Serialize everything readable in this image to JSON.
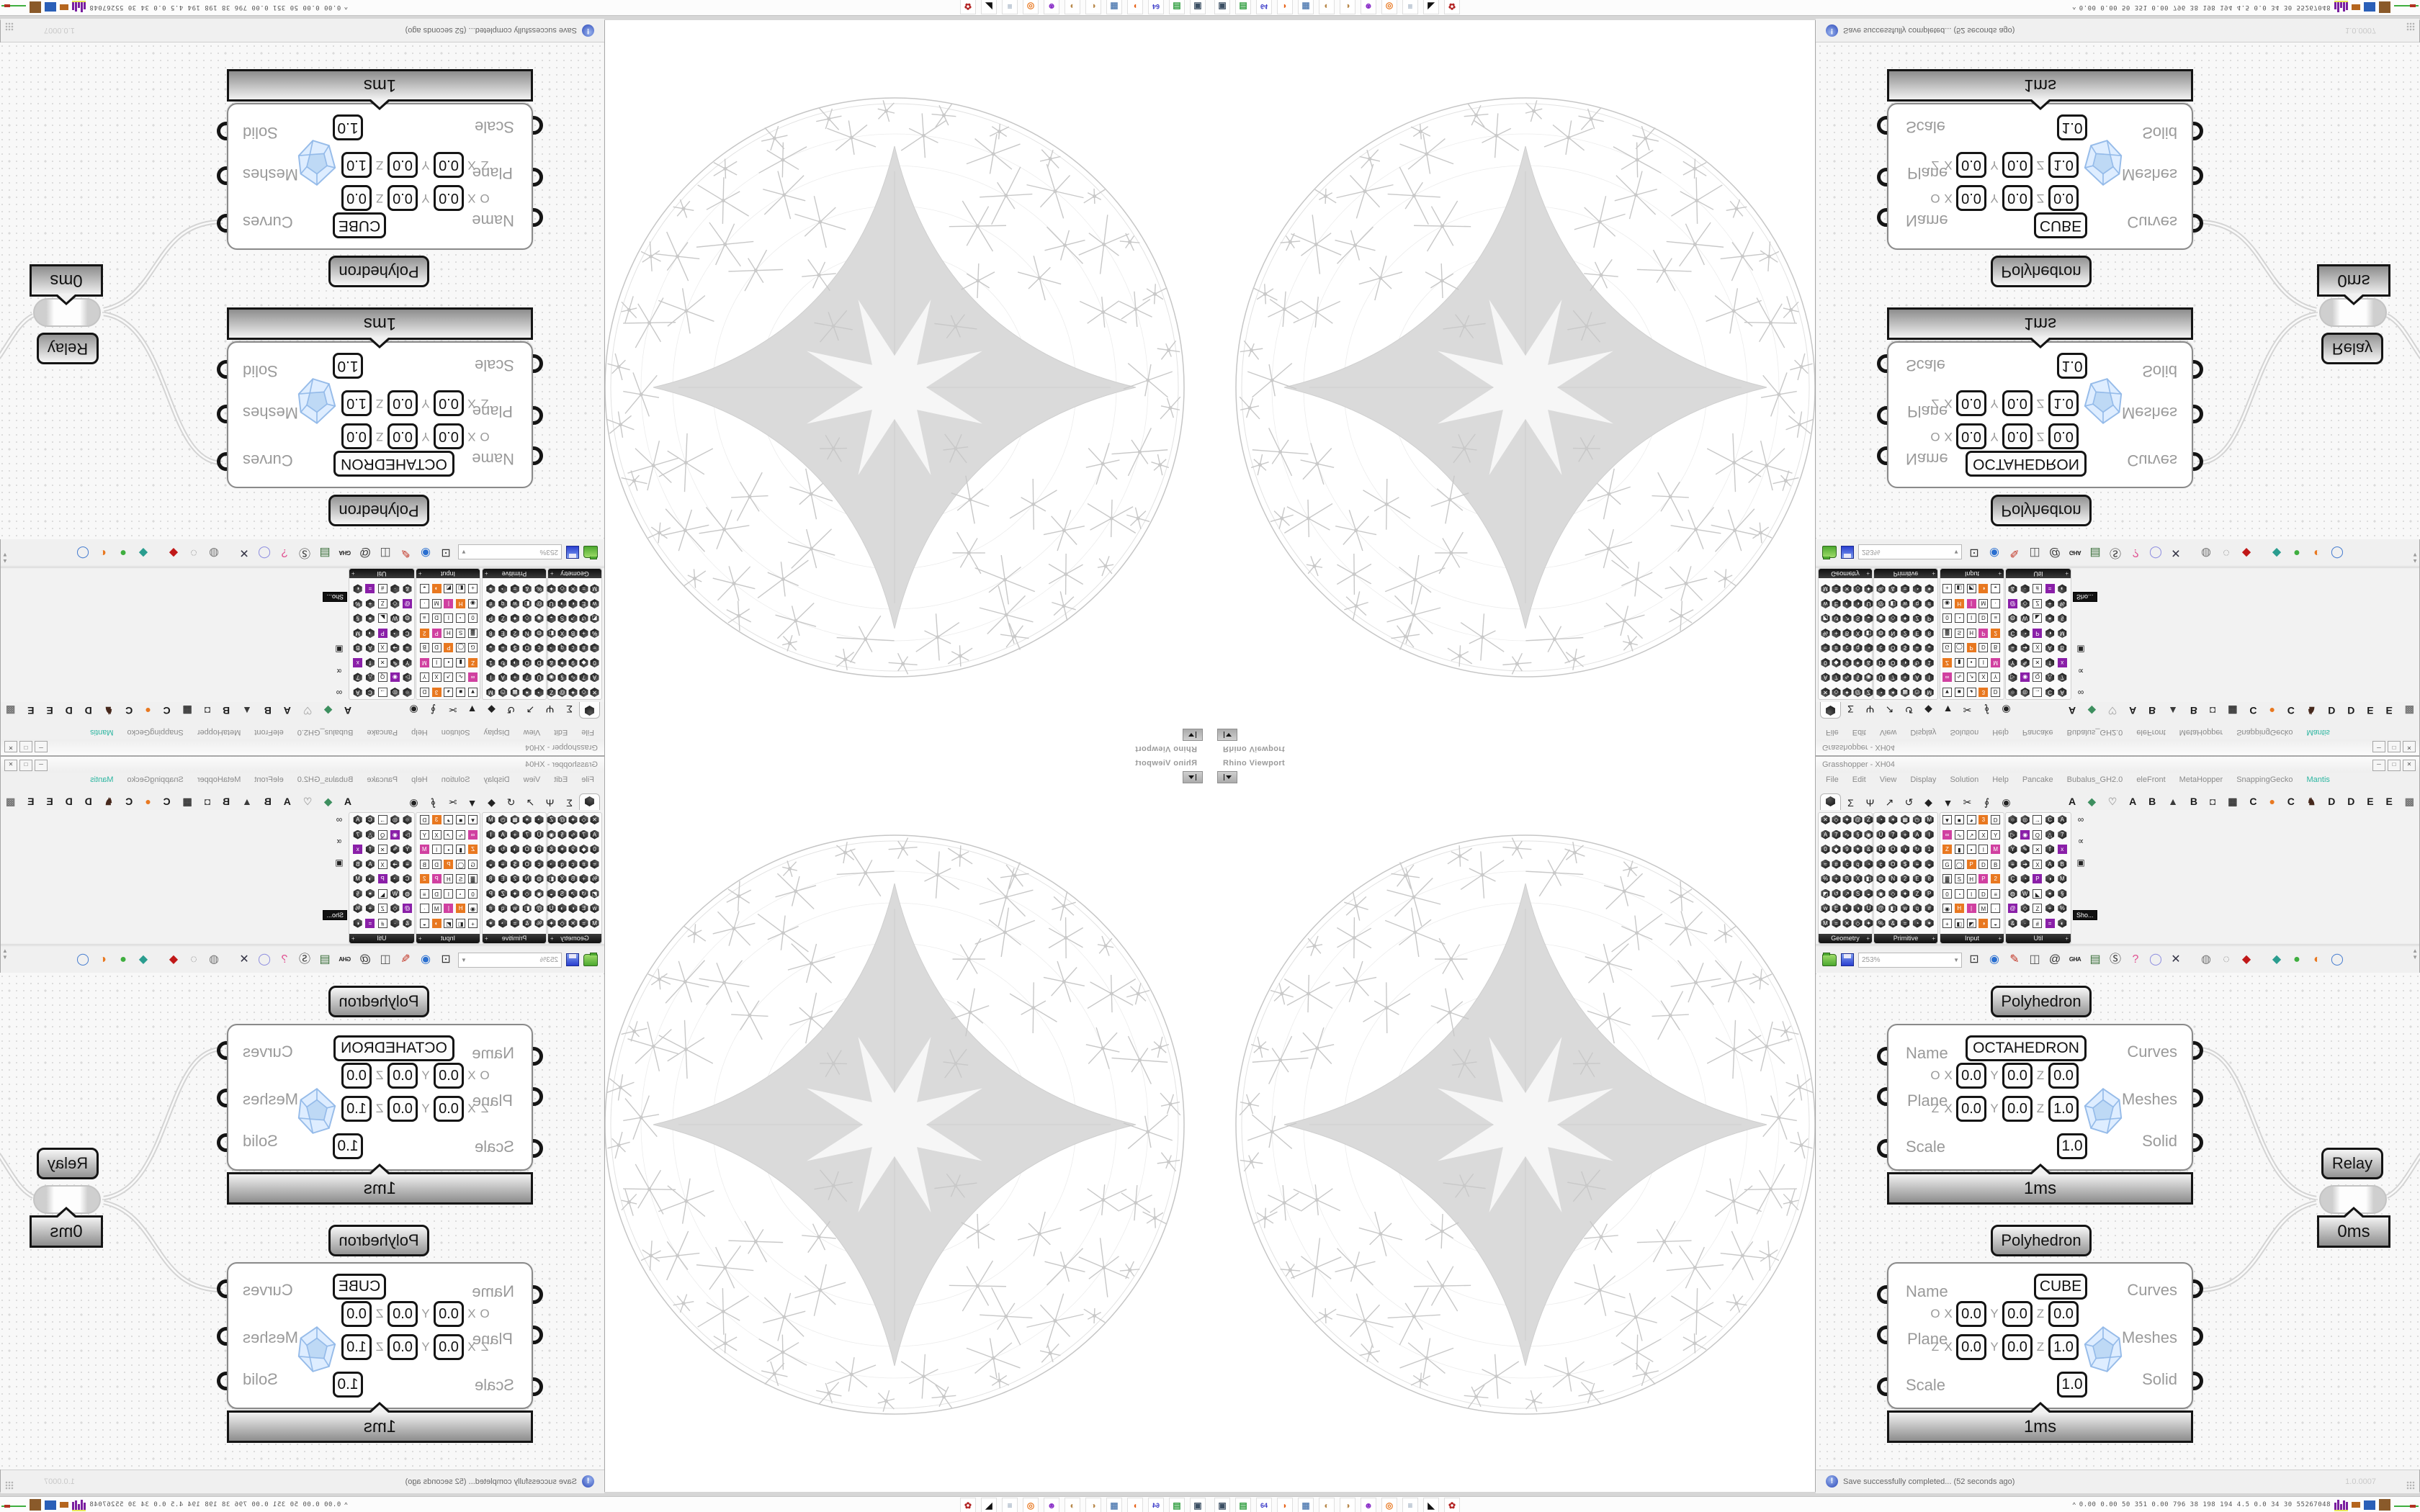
{
  "app": {
    "title": "Grasshopper - XH04",
    "doc_label": "XH04",
    "window_buttons": [
      "─",
      "□",
      "✕"
    ]
  },
  "menu": {
    "items": [
      "File",
      "Edit",
      "View",
      "Display",
      "Solution",
      "Help",
      "Pancake",
      "Bubalus_GH2.0",
      "eleFront",
      "MetaHopper",
      "SnappingGecko",
      "Mantis"
    ],
    "highlight_item": "Mantis",
    "highlight_color": "#2bb5a0"
  },
  "tabs": {
    "standard_glyphs": [
      "hex",
      "Σ",
      "Ψ",
      "↗",
      "↺",
      "◆",
      "▼",
      "✂",
      "∮",
      "◉"
    ],
    "plugins": [
      [
        "A",
        "#1a1a1a"
      ],
      [
        "◆",
        "#3d8f5f"
      ],
      [
        "♡",
        "#aaaaaa"
      ],
      [
        "A",
        "#1a1a1a"
      ],
      [
        "B",
        "#1a1a1a"
      ],
      [
        "▲",
        "#3a3a3a"
      ],
      [
        "B",
        "#1a1a1a"
      ],
      [
        "◘",
        "#555555"
      ],
      [
        "▦",
        "#333333"
      ],
      [
        "C",
        "#1a1a1a"
      ],
      [
        "●",
        "#e87820"
      ],
      [
        "C",
        "#1a1a1a"
      ],
      [
        "♞",
        "#46281c"
      ],
      [
        "D",
        "#1a1a1a"
      ],
      [
        "D",
        "#1a1a1a"
      ],
      [
        "E",
        "#1a1a1a"
      ],
      [
        "E",
        "#1a1a1a"
      ],
      [
        "▩",
        "#777777"
      ]
    ]
  },
  "palette": {
    "panels": [
      {
        "label": "Geometry",
        "style": "dark",
        "glyphs": "✕◇✦@ZA7∿§◉0◆9✶&≈#cq◔%+BX◧◩↺↗S◒wE◐◑UM="
      },
      {
        "label": "Primitive",
        "style": "dark",
        "glyphs": "◔✶▦◷MÜ7+AIDO◑↻1cO$≡◒◍N2E8◉◇✦ZP@◧wq#%&="
      },
      {
        "label": "Input",
        "style": "light",
        "glyphs": "▼■◕3D∞∿↗XYZ▮▪IMG◯PDB▓SHP20◔ID≡◉H|M·+◧◩◑◒UZ"
      },
      {
        "label": "Util",
        "style": "mixed",
        "glyphs": "○◎→CA▷◉Q△7Y✎✕fx≡➔XABC◔P◑M◍W◣✶§@◇Z+%&·#=◐·"
      }
    ],
    "partial_glyphs": [
      "∞",
      "∝",
      "▣"
    ],
    "tooltip": "Sho..."
  },
  "canvas_toolbar": {
    "zoom_value": "253%",
    "icons": [
      [
        "frame-icon",
        "⊡",
        "#333333"
      ],
      [
        "eye-icon",
        "◉",
        "#2a6fd0"
      ],
      [
        "pen-icon",
        "✎",
        "#c03020"
      ],
      [
        "door-icon",
        "◫",
        "#555555"
      ],
      [
        "at-icon",
        "@",
        "#333333"
      ],
      [
        "gha-icon",
        "GHA",
        "#222222"
      ],
      [
        "doc-icon",
        "▤",
        "#3a6f3a"
      ],
      [
        "magnifier-icon",
        "Ⓢ",
        "#333333"
      ],
      [
        "shorts-icon",
        "?",
        "#e05090"
      ],
      [
        "balloon-icon",
        "◯",
        "#9090e0"
      ],
      [
        "cross-icon",
        "✕",
        "#333344"
      ],
      [
        "spheres-icon",
        "◍",
        "#777777"
      ],
      [
        "rings-icon",
        "◌",
        "#888888"
      ],
      [
        "gem-icon",
        "◆",
        "#c01818"
      ],
      [
        "pin-teal-icon",
        "◆",
        "#2a9d8f"
      ],
      [
        "pin-green-icon",
        "●",
        "#3fae3f"
      ],
      [
        "orange-sphere-icon",
        "◐",
        "#e87820"
      ],
      [
        "balloon-blue-icon",
        "◯",
        "#4a7fd0"
      ]
    ]
  },
  "clusters": [
    {
      "header": "Polyhedron",
      "name_label": "Name",
      "name_value": "OCTAHEDRON",
      "plane_label": "Plane",
      "scale_label": "Scale",
      "scale_value": "1.0",
      "outputs": [
        "Curves",
        "Meshes",
        "Solid"
      ],
      "plane_rows": [
        {
          "lead": "O",
          "cells": [
            [
              "X",
              "0.0"
            ],
            [
              "Y",
              "0.0"
            ],
            [
              "Z",
              "0.0"
            ]
          ]
        },
        {
          "lead": "Z",
          "cells": [
            [
              "X",
              "0.0"
            ],
            [
              "Y",
              "0.0"
            ],
            [
              "Z",
              "1.0"
            ]
          ]
        }
      ],
      "time": "1ms"
    },
    {
      "header": "Polyhedron",
      "name_label": "Name",
      "name_value": "CUBE",
      "plane_label": "Plane",
      "scale_label": "Scale",
      "scale_value": "1.0",
      "outputs": [
        "Curves",
        "Meshes",
        "Solid"
      ],
      "plane_rows": [
        {
          "lead": "O",
          "cells": [
            [
              "X",
              "0.0"
            ],
            [
              "Y",
              "0.0"
            ],
            [
              "Z",
              "0.0"
            ]
          ]
        },
        {
          "lead": "Z",
          "cells": [
            [
              "X",
              "0.0"
            ],
            [
              "Y",
              "0.0"
            ],
            [
              "Z",
              "1.0"
            ]
          ]
        }
      ],
      "time": "1ms"
    }
  ],
  "relay": {
    "header": "Relay",
    "time": "0ms"
  },
  "viewport": {
    "title": "Rhino Viewport"
  },
  "statusbar": {
    "message": "Save successfully completed... (52 seconds ago)",
    "version": "1.0.0007"
  },
  "taskbar": {
    "icons": [
      [
        "screenshot-tool-icon",
        "▣",
        "#3b4f63"
      ],
      [
        "printer-green-icon",
        "▤",
        "#2f9e3f"
      ],
      [
        "floppy-64-icon",
        "64",
        "#3a3ac8"
      ],
      [
        "firefox-icon",
        "◗",
        "#e8641a"
      ],
      [
        "calculator-icon",
        "▦",
        "#5f86b8"
      ],
      [
        "palette-icon",
        "◐",
        "#b8884a"
      ],
      [
        "palette2-icon",
        "◑",
        "#b8884a"
      ],
      [
        "purple-face-icon",
        "☻",
        "#8a2fc8"
      ],
      [
        "blender-icon",
        "◎",
        "#e87820"
      ],
      [
        "documents-icon",
        "≡",
        "#7a8fa8"
      ],
      [
        "black-app-icon",
        "◣",
        "#111111"
      ],
      [
        "red-app-icon",
        "✿",
        "#b22222"
      ]
    ],
    "monitor": {
      "caret": "^",
      "numbers": "0.00 0.00  50  351 0.00 796  38  198 194  4.5  0.0  34  30 55267048"
    }
  }
}
